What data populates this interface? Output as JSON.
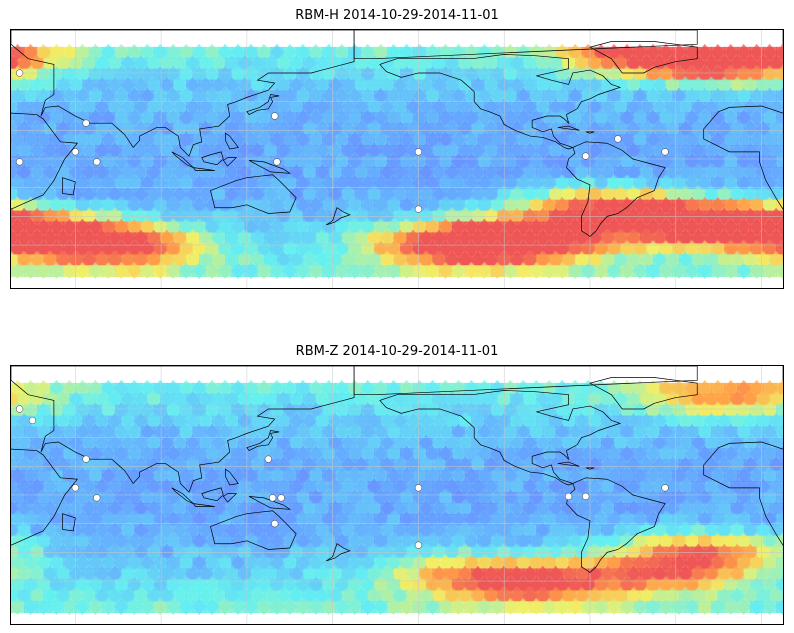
{
  "panels": [
    {
      "title": "RBM-H 2014-10-29-2014-11-01",
      "variant": "H",
      "hot_zones": [
        {
          "lon": -20,
          "lat": -45,
          "strength": 1.0
        },
        {
          "lon": -130,
          "lat": -60,
          "strength": 0.9
        },
        {
          "lon": -100,
          "lat": -55,
          "strength": 0.7
        },
        {
          "lon": 60,
          "lat": -60,
          "strength": 0.9
        },
        {
          "lon": 20,
          "lat": -50,
          "strength": 0.7
        },
        {
          "lon": -10,
          "lat": 70,
          "strength": 0.9
        },
        {
          "lon": -40,
          "lat": 75,
          "strength": 0.7
        },
        {
          "lon": -65,
          "lat": -35,
          "strength": 0.7
        }
      ]
    },
    {
      "title": "RBM-Z 2014-10-29-2014-11-01",
      "variant": "Z",
      "hot_zones": [
        {
          "lon": -20,
          "lat": -40,
          "strength": 0.55
        },
        {
          "lon": -40,
          "lat": -55,
          "strength": 0.5
        },
        {
          "lon": -100,
          "lat": -62,
          "strength": 0.6
        },
        {
          "lon": -130,
          "lat": -55,
          "strength": 0.35
        },
        {
          "lon": -10,
          "lat": 70,
          "strength": 0.45
        }
      ]
    }
  ],
  "colormap": [
    "#6a6aff",
    "#5fa0ff",
    "#5ef0f0",
    "#f0f060",
    "#ff9a40",
    "#ee5050"
  ],
  "land_color": "#000000",
  "grid_color": "#c8c8c8",
  "colors": {
    "frame": "#000000",
    "background": "#ffffff"
  }
}
